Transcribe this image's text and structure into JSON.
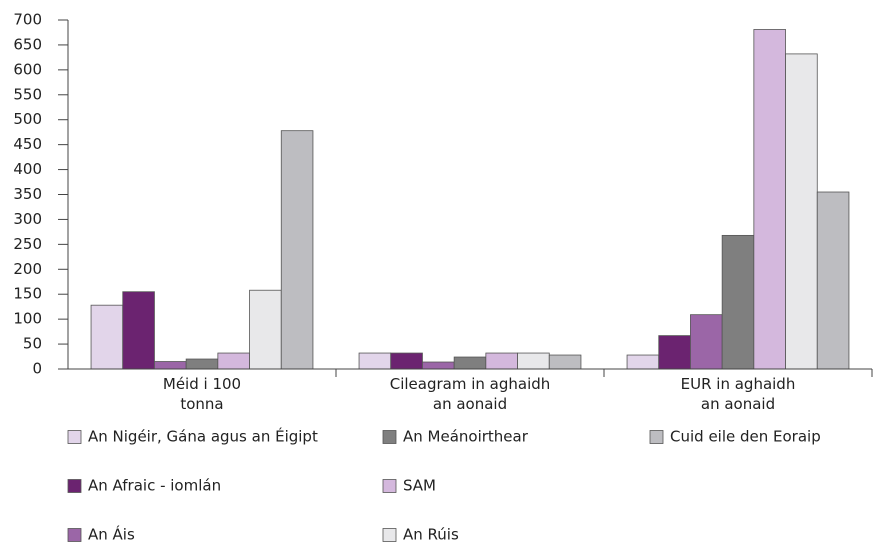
{
  "chart_data": {
    "type": "bar",
    "categories": [
      "Méid i 100\ntonna",
      "Cileagram in aghaidh\nan aonaid",
      "EUR in aghaidh\nan aonaid"
    ],
    "series": [
      {
        "name": "An Nigéir, Gána agus an Éigipt",
        "color": "#e2d5ea",
        "values": [
          128,
          32,
          28
        ]
      },
      {
        "name": "An Afraic - iomlán",
        "color": "#6b2370",
        "values": [
          155,
          32,
          67
        ]
      },
      {
        "name": "An Áis",
        "color": "#9b66a7",
        "values": [
          15,
          14,
          109
        ]
      },
      {
        "name": "An Meánoirthear",
        "color": "#7f7f7f",
        "values": [
          20,
          24,
          268
        ]
      },
      {
        "name": "SAM",
        "color": "#d4b8dd",
        "values": [
          32,
          32,
          681
        ]
      },
      {
        "name": "An Rúis",
        "color": "#e8e8ea",
        "values": [
          158,
          32,
          632
        ]
      },
      {
        "name": "Cuid eile den Eoraip",
        "color": "#bdbdc1",
        "values": [
          478,
          28,
          355
        ]
      }
    ],
    "ylim": [
      0,
      700
    ],
    "yticks": [
      0,
      50,
      100,
      150,
      200,
      250,
      300,
      350,
      400,
      450,
      500,
      550,
      600,
      650,
      700
    ]
  }
}
